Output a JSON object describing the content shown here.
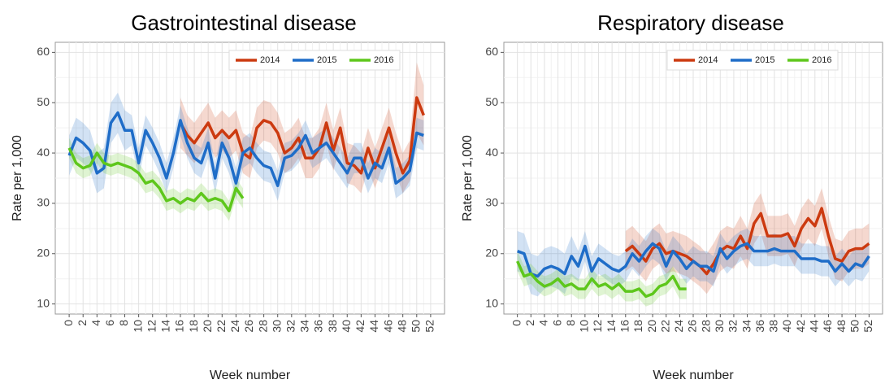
{
  "chart_data": [
    {
      "type": "line",
      "title": "Gastrointestinal disease",
      "x_label": "Week number",
      "y_label": "Rate per 1,000",
      "x": [
        0,
        1,
        2,
        3,
        4,
        5,
        6,
        7,
        8,
        9,
        10,
        11,
        12,
        13,
        14,
        15,
        16,
        17,
        18,
        19,
        20,
        21,
        22,
        23,
        24,
        25,
        26,
        27,
        28,
        29,
        30,
        31,
        32,
        33,
        34,
        35,
        36,
        37,
        38,
        39,
        40,
        41,
        42,
        43,
        44,
        45,
        46,
        47,
        48,
        49,
        50,
        51,
        52
      ],
      "xlim": [
        -2,
        54
      ],
      "xticks": [
        0,
        2,
        4,
        6,
        8,
        10,
        12,
        14,
        16,
        18,
        20,
        22,
        24,
        26,
        28,
        30,
        32,
        34,
        36,
        38,
        40,
        42,
        44,
        46,
        48,
        50,
        52
      ],
      "ylim": [
        8,
        62
      ],
      "yticks": [
        10,
        20,
        30,
        40,
        50,
        60
      ],
      "grid": true,
      "legend": "top-right",
      "series": [
        {
          "name": "2014",
          "color": "#cc3a10",
          "values": [
            null,
            null,
            null,
            null,
            null,
            null,
            null,
            null,
            null,
            null,
            null,
            null,
            null,
            null,
            null,
            null,
            46,
            43.5,
            42,
            44,
            46,
            43,
            44.5,
            43,
            44.5,
            40,
            39,
            45,
            46.5,
            46,
            44,
            40,
            41,
            43,
            39,
            39,
            41,
            46,
            40.5,
            45,
            38,
            37.5,
            36,
            41,
            37,
            41,
            45,
            40,
            36,
            38.5,
            51,
            47.5,
            null
          ],
          "margins": [
            null,
            null,
            null,
            null,
            null,
            null,
            null,
            null,
            null,
            null,
            null,
            null,
            null,
            null,
            null,
            null,
            5,
            4,
            4,
            4,
            4,
            4,
            4,
            4,
            4,
            4,
            4,
            4,
            4,
            4,
            4,
            4,
            4,
            4,
            4,
            4,
            4,
            4,
            4,
            4,
            4,
            4,
            4,
            4,
            4,
            4,
            4,
            4,
            4,
            4,
            7,
            6,
            null
          ]
        },
        {
          "name": "2015",
          "color": "#1f6dc8",
          "values": [
            39.5,
            43,
            42,
            40.5,
            36,
            37,
            46,
            48,
            44.5,
            44.5,
            38,
            44.5,
            42,
            39,
            35,
            40,
            46.5,
            42,
            39,
            38,
            42,
            35,
            42,
            39,
            34,
            40,
            41,
            39,
            37.5,
            37,
            33.5,
            39,
            39.5,
            41,
            43.5,
            40,
            41,
            42,
            40,
            38,
            36,
            39,
            39,
            35,
            38,
            37,
            41,
            34,
            35,
            36.5,
            44,
            43.5,
            null
          ],
          "margins": [
            4,
            4,
            4,
            4,
            4,
            4,
            4,
            4,
            4,
            3,
            3,
            3,
            3,
            3,
            3,
            3,
            3,
            3,
            3,
            3,
            3,
            3,
            3,
            3,
            3,
            3,
            3,
            3,
            3,
            3,
            3,
            3,
            3,
            3,
            3,
            3,
            3,
            3,
            3,
            3,
            3,
            3,
            3,
            3,
            3,
            3,
            3,
            3,
            3,
            3,
            3,
            3,
            null
          ]
        },
        {
          "name": "2016",
          "color": "#5ec71c",
          "values": [
            41,
            38,
            37,
            37.5,
            40,
            38,
            37.5,
            38,
            37.5,
            37,
            36,
            34,
            34.5,
            33,
            30.5,
            31,
            30,
            31,
            30.5,
            32,
            30.5,
            31,
            30.5,
            28.5,
            33,
            31,
            null,
            null,
            null,
            null,
            null,
            null,
            null,
            null,
            null,
            null,
            null,
            null,
            null,
            null,
            null,
            null,
            null,
            null,
            null,
            null,
            null,
            null,
            null,
            null,
            null,
            null,
            null
          ],
          "margins": [
            2,
            2,
            2,
            2,
            2,
            2,
            2,
            2,
            2,
            2,
            2,
            2,
            2,
            2,
            2,
            2,
            2,
            2,
            2,
            2,
            2,
            2,
            2,
            2,
            2,
            2,
            null,
            null,
            null,
            null,
            null,
            null,
            null,
            null,
            null,
            null,
            null,
            null,
            null,
            null,
            null,
            null,
            null,
            null,
            null,
            null,
            null,
            null,
            null,
            null,
            null,
            null,
            null
          ]
        }
      ]
    },
    {
      "type": "line",
      "title": "Respiratory disease",
      "x_label": "Week number",
      "y_label": "Rate per 1,000",
      "x": [
        0,
        1,
        2,
        3,
        4,
        5,
        6,
        7,
        8,
        9,
        10,
        11,
        12,
        13,
        14,
        15,
        16,
        17,
        18,
        19,
        20,
        21,
        22,
        23,
        24,
        25,
        26,
        27,
        28,
        29,
        30,
        31,
        32,
        33,
        34,
        35,
        36,
        37,
        38,
        39,
        40,
        41,
        42,
        43,
        44,
        45,
        46,
        47,
        48,
        49,
        50,
        51,
        52
      ],
      "xlim": [
        -2,
        54
      ],
      "xticks": [
        0,
        2,
        4,
        6,
        8,
        10,
        12,
        14,
        16,
        18,
        20,
        22,
        24,
        26,
        28,
        30,
        32,
        34,
        36,
        38,
        40,
        42,
        44,
        46,
        48,
        50,
        52
      ],
      "ylim": [
        8,
        62
      ],
      "yticks": [
        10,
        20,
        30,
        40,
        50,
        60
      ],
      "grid": true,
      "legend": "top-right",
      "series": [
        {
          "name": "2014",
          "color": "#cc3a10",
          "values": [
            null,
            null,
            null,
            null,
            null,
            null,
            null,
            null,
            null,
            null,
            null,
            null,
            null,
            null,
            null,
            null,
            20.5,
            21.5,
            20,
            18.5,
            21,
            22,
            20,
            20.5,
            20,
            19.5,
            18.5,
            17.5,
            16,
            18,
            20.5,
            21.5,
            21,
            23.5,
            21,
            26,
            28,
            23.5,
            23.5,
            23.5,
            24,
            21.5,
            25,
            27,
            25.5,
            29,
            23.5,
            19,
            18.5,
            20.5,
            21,
            21,
            22
          ],
          "margins": [
            null,
            null,
            null,
            null,
            null,
            null,
            null,
            null,
            null,
            null,
            null,
            null,
            null,
            null,
            null,
            null,
            4,
            4,
            4,
            4,
            4,
            4,
            4,
            4,
            4,
            4,
            4,
            4,
            4,
            4,
            4,
            4,
            4,
            4,
            4,
            4,
            4,
            4,
            4,
            4,
            4,
            4,
            4,
            4,
            4,
            4,
            4,
            4,
            4,
            4,
            4,
            4,
            4
          ]
        },
        {
          "name": "2015",
          "color": "#1f6dc8",
          "values": [
            20.5,
            20,
            16,
            15.5,
            17,
            17.5,
            17,
            16,
            19.5,
            17.5,
            21.5,
            16.5,
            19,
            18,
            17,
            16.5,
            17.5,
            20,
            18.5,
            20.5,
            22,
            21,
            17.5,
            20.5,
            19,
            17,
            18.5,
            17.5,
            17.5,
            16.5,
            21,
            19,
            20.5,
            21.5,
            22,
            20.5,
            20.5,
            20.5,
            21,
            20.5,
            20.5,
            20.5,
            19,
            19,
            19,
            18.5,
            18.5,
            16.5,
            18,
            16.5,
            18,
            17.5,
            19.5
          ],
          "margins": [
            4,
            4,
            4,
            4,
            4,
            4,
            4,
            4,
            4,
            3,
            3,
            3,
            3,
            3,
            3,
            3,
            3,
            3,
            3,
            3,
            3,
            3,
            3,
            3,
            3,
            3,
            3,
            3,
            3,
            3,
            3,
            3,
            3,
            3,
            3,
            3,
            3,
            3,
            3,
            3,
            3,
            3,
            3,
            3,
            3,
            3,
            3,
            3,
            3,
            3,
            3,
            3,
            3
          ]
        },
        {
          "name": "2016",
          "color": "#5ec71c",
          "values": [
            18.5,
            15.5,
            16,
            14.5,
            13.5,
            14,
            15,
            13.5,
            14,
            13,
            13,
            15,
            13.5,
            14,
            13,
            14,
            12.5,
            12.5,
            13,
            11.5,
            12,
            13.5,
            14,
            15.5,
            13,
            13,
            null,
            null,
            null,
            null,
            null,
            null,
            null,
            null,
            null,
            null,
            null,
            null,
            null,
            null,
            null,
            null,
            null,
            null,
            null,
            null,
            null,
            null,
            null,
            null,
            null,
            null,
            null
          ],
          "margins": [
            2,
            2,
            2,
            2,
            2,
            2,
            2,
            2,
            2,
            2,
            2,
            2,
            2,
            2,
            2,
            2,
            2,
            2,
            2,
            2,
            2,
            2,
            2,
            2,
            2,
            2,
            null,
            null,
            null,
            null,
            null,
            null,
            null,
            null,
            null,
            null,
            null,
            null,
            null,
            null,
            null,
            null,
            null,
            null,
            null,
            null,
            null,
            null,
            null,
            null,
            null,
            null,
            null
          ]
        }
      ]
    }
  ]
}
